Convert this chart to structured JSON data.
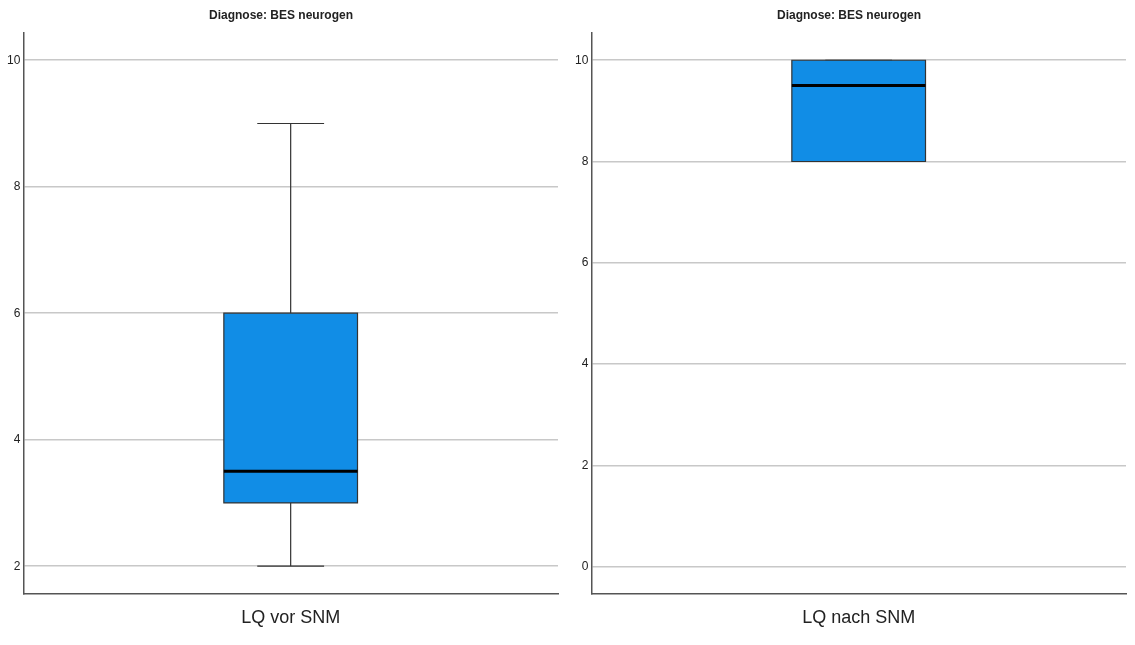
{
  "chart_data": [
    {
      "type": "box",
      "title": "Diagnose: BES neurogen",
      "categories": [
        "LQ vor SNM"
      ],
      "ylim": [
        1.57,
        10.44
      ],
      "yticks": [
        2,
        4,
        6,
        8,
        10
      ],
      "grid": "y",
      "series": [
        {
          "color": "#118de6",
          "boxes": [
            {
              "low": 2,
              "q1": 3,
              "median": 3.5,
              "q3": 6,
              "high": 9
            }
          ]
        }
      ]
    },
    {
      "type": "box",
      "title": "Diagnose: BES neurogen",
      "categories": [
        "LQ nach SNM"
      ],
      "ylim": [
        -0.53,
        10.55
      ],
      "yticks": [
        0,
        2,
        4,
        6,
        8,
        10
      ],
      "grid": "y",
      "series": [
        {
          "color": "#118de6",
          "boxes": [
            {
              "low": 8,
              "q1": 8,
              "median": 9.5,
              "q3": 10,
              "high": 10
            }
          ]
        }
      ]
    }
  ]
}
